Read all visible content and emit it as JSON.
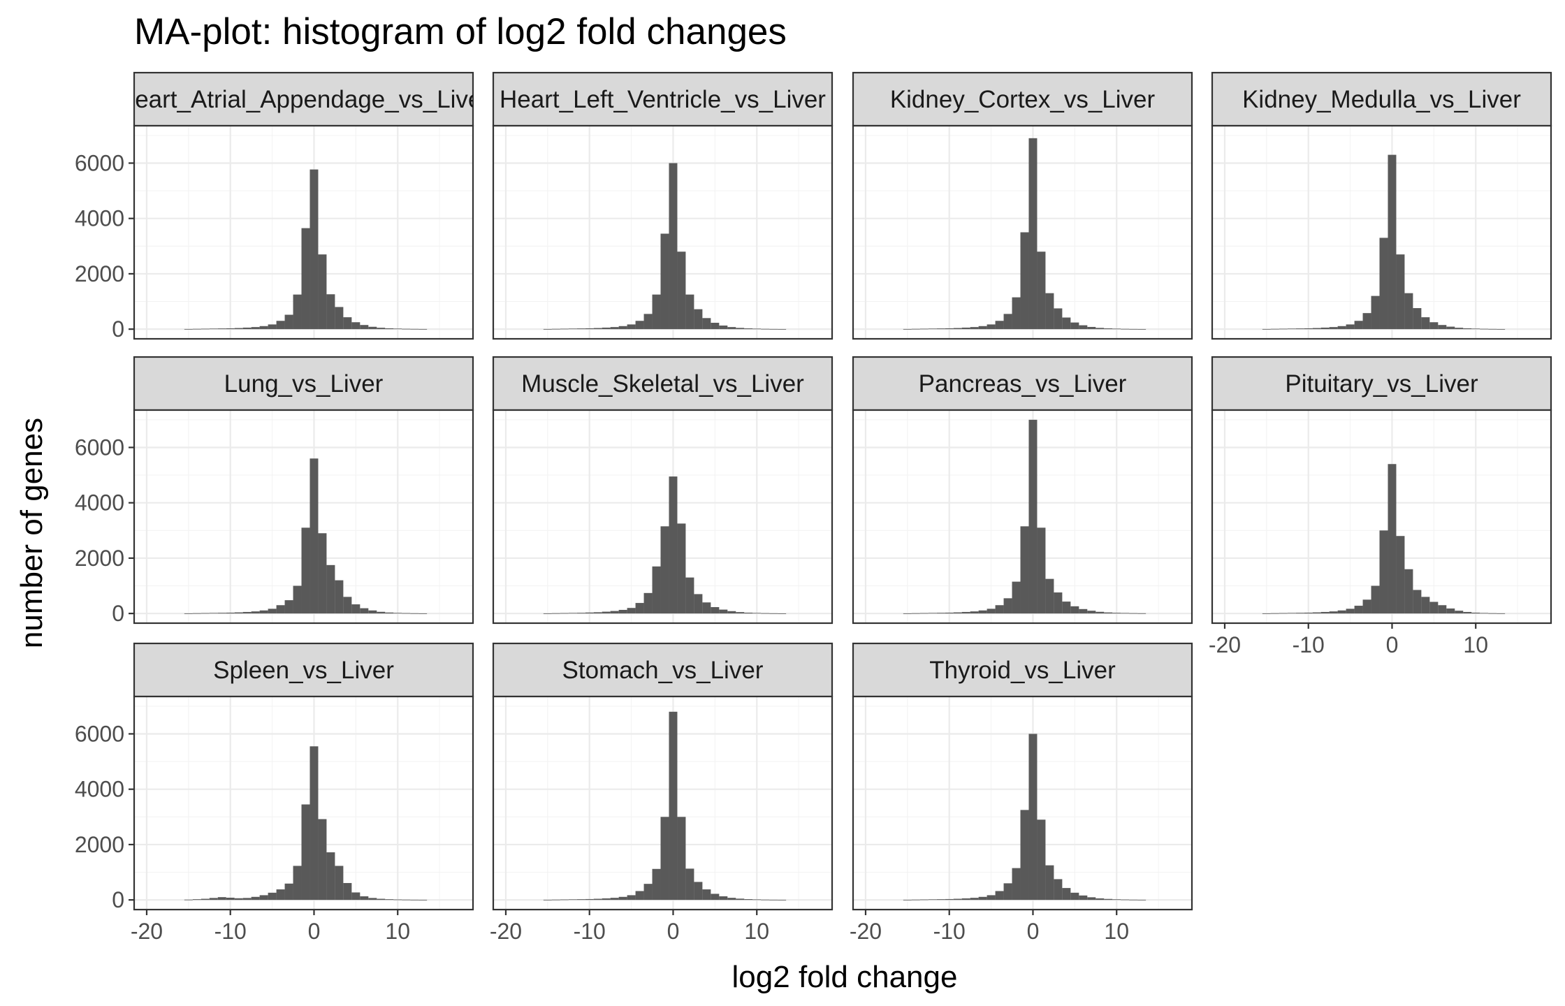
{
  "chart_data": {
    "type": "bar",
    "title": "MA-plot: histogram of log2 fold changes",
    "xlabel": "log2 fold change",
    "ylabel": "number of genes",
    "xlim": [
      -21.5,
      19
    ],
    "ylim": [
      -350,
      7350
    ],
    "x_ticks": [
      -20,
      -10,
      0,
      10
    ],
    "y_ticks": [
      0,
      2000,
      4000,
      6000
    ],
    "bin_width": 1.0,
    "grid": true,
    "layout": "facet-wrap 4 columns",
    "bin_centers": [
      -15,
      -14,
      -13,
      -12,
      -11,
      -10,
      -9,
      -8,
      -7,
      -6,
      -5,
      -4,
      -3,
      -2,
      -1,
      0,
      1,
      2,
      3,
      4,
      5,
      6,
      7,
      8,
      9,
      10,
      11,
      12,
      13
    ],
    "panels": [
      {
        "label": "Heart_Atrial_Appendage_vs_Liver",
        "values": [
          5,
          10,
          15,
          20,
          25,
          30,
          40,
          55,
          75,
          110,
          170,
          300,
          520,
          1250,
          3650,
          5770,
          2700,
          1260,
          800,
          430,
          250,
          150,
          85,
          50,
          30,
          20,
          12,
          8,
          5
        ]
      },
      {
        "label": "Heart_Left_Ventricle_vs_Liver",
        "values": [
          5,
          10,
          15,
          20,
          25,
          30,
          40,
          55,
          75,
          110,
          170,
          300,
          550,
          1250,
          3450,
          6000,
          2800,
          1250,
          720,
          400,
          230,
          130,
          75,
          45,
          28,
          18,
          10,
          6,
          4
        ]
      },
      {
        "label": "Kidney_Cortex_vs_Liver",
        "values": [
          5,
          10,
          15,
          20,
          25,
          30,
          40,
          55,
          75,
          110,
          170,
          300,
          550,
          1150,
          3500,
          6900,
          2800,
          1300,
          750,
          420,
          240,
          140,
          80,
          45,
          28,
          18,
          10,
          6,
          4
        ]
      },
      {
        "label": "Kidney_Medulla_vs_Liver",
        "values": [
          5,
          10,
          15,
          20,
          25,
          30,
          40,
          55,
          75,
          110,
          170,
          300,
          580,
          1200,
          3300,
          6300,
          2700,
          1300,
          760,
          430,
          250,
          150,
          90,
          50,
          30,
          20,
          12,
          7,
          4
        ]
      },
      {
        "label": "Lung_vs_Liver",
        "values": [
          5,
          10,
          15,
          20,
          25,
          30,
          40,
          55,
          75,
          110,
          170,
          300,
          480,
          1000,
          3100,
          5600,
          2900,
          1750,
          1200,
          600,
          330,
          190,
          110,
          60,
          35,
          22,
          14,
          8,
          5
        ]
      },
      {
        "label": "Muscle_Skeletal_vs_Liver",
        "values": [
          5,
          10,
          15,
          20,
          25,
          35,
          45,
          65,
          90,
          130,
          200,
          380,
          740,
          1700,
          3150,
          4950,
          3250,
          1300,
          700,
          400,
          230,
          140,
          85,
          50,
          30,
          20,
          12,
          7,
          4
        ]
      },
      {
        "label": "Pancreas_vs_Liver",
        "values": [
          5,
          10,
          15,
          20,
          25,
          30,
          40,
          55,
          75,
          110,
          170,
          300,
          550,
          1150,
          3150,
          7000,
          3100,
          1250,
          760,
          430,
          260,
          160,
          100,
          60,
          38,
          25,
          18,
          12,
          8
        ]
      },
      {
        "label": "Pituitary_vs_Liver",
        "values": [
          5,
          10,
          15,
          20,
          25,
          30,
          40,
          55,
          75,
          110,
          170,
          280,
          500,
          1000,
          3000,
          5400,
          2800,
          1600,
          850,
          600,
          420,
          300,
          180,
          100,
          55,
          30,
          18,
          10,
          6
        ]
      },
      {
        "label": "Spleen_vs_Liver",
        "values": [
          10,
          25,
          40,
          70,
          100,
          80,
          60,
          70,
          110,
          170,
          260,
          380,
          590,
          1230,
          3450,
          5550,
          2920,
          1720,
          1230,
          610,
          270,
          130,
          70,
          40,
          25,
          15,
          10,
          6,
          4
        ]
      },
      {
        "label": "Stomach_vs_Liver",
        "values": [
          5,
          10,
          15,
          20,
          25,
          30,
          40,
          55,
          75,
          110,
          170,
          320,
          580,
          1120,
          3000,
          6800,
          3000,
          1130,
          650,
          380,
          220,
          130,
          75,
          45,
          28,
          18,
          10,
          6,
          4
        ]
      },
      {
        "label": "Thyroid_vs_Liver",
        "values": [
          5,
          10,
          15,
          20,
          25,
          30,
          40,
          55,
          75,
          110,
          170,
          320,
          600,
          1150,
          3250,
          6000,
          2900,
          1250,
          750,
          430,
          260,
          160,
          95,
          55,
          35,
          22,
          14,
          8,
          5
        ]
      }
    ],
    "x_axis_shown_on": [
      "Pituitary_vs_Liver",
      "Spleen_vs_Liver",
      "Stomach_vs_Liver",
      "Thyroid_vs_Liver"
    ]
  }
}
